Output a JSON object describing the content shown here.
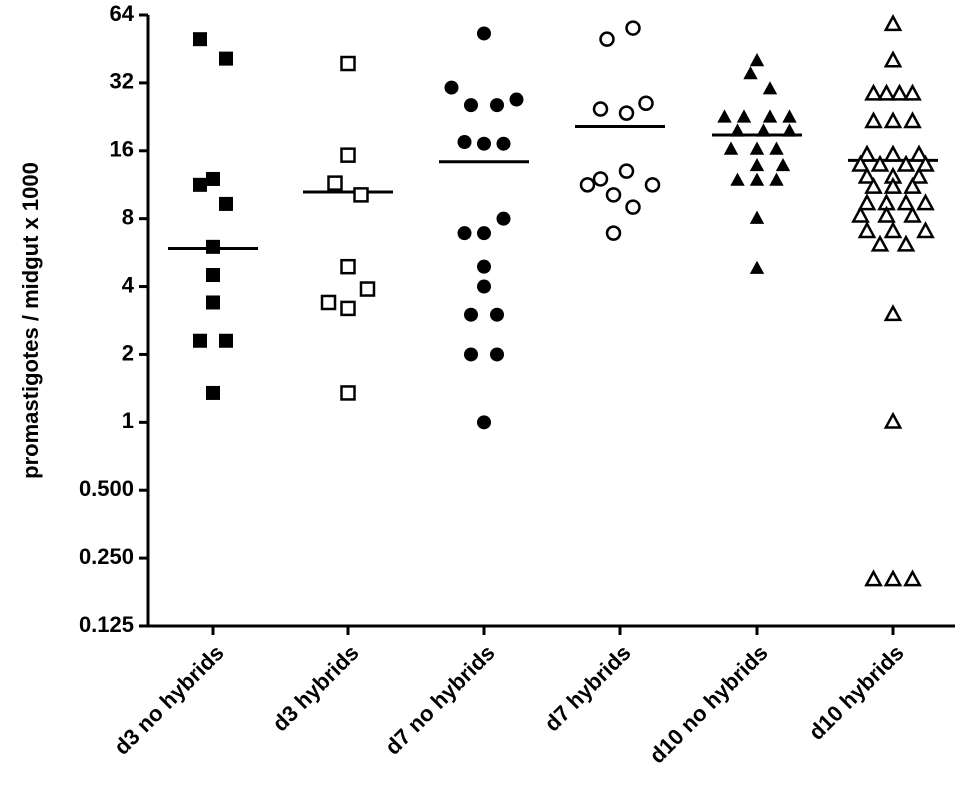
{
  "chart_data": {
    "type": "scatter",
    "ylabel": "promastigotes / midgut x 1000",
    "xlabel": "",
    "title": "",
    "yscale": "log2",
    "ylim": [
      0.125,
      64
    ],
    "yticks": [
      {
        "value": 0.125,
        "label": "0.125"
      },
      {
        "value": 0.25,
        "label": "0.250"
      },
      {
        "value": 0.5,
        "label": "0.500"
      },
      {
        "value": 1,
        "label": "1"
      },
      {
        "value": 2,
        "label": "2"
      },
      {
        "value": 4,
        "label": "4"
      },
      {
        "value": 8,
        "label": "8"
      },
      {
        "value": 16,
        "label": "16"
      },
      {
        "value": 32,
        "label": "32"
      },
      {
        "value": 64,
        "label": "64"
      }
    ],
    "categories": [
      "d3 no hybrids",
      "d3 hybrids",
      "d7 no hybrids",
      "d7 hybrids",
      "d10 no hybrids",
      "d10 hybrids"
    ],
    "series": [
      {
        "category": "d3 no hybrids",
        "marker": "square-filled",
        "mean": 5.9,
        "points": [
          {
            "dx": -1,
            "y": 50
          },
          {
            "dx": 1,
            "y": 41
          },
          {
            "dx": 0,
            "y": 12
          },
          {
            "dx": -1,
            "y": 11.3
          },
          {
            "dx": 1,
            "y": 9.3
          },
          {
            "dx": 0,
            "y": 6
          },
          {
            "dx": 0,
            "y": 4.5
          },
          {
            "dx": 0,
            "y": 3.4
          },
          {
            "dx": -1,
            "y": 2.3
          },
          {
            "dx": 1,
            "y": 2.3
          },
          {
            "dx": 0,
            "y": 1.35
          }
        ]
      },
      {
        "category": "d3 hybrids",
        "marker": "square-open",
        "mean": 10.5,
        "points": [
          {
            "dx": 0,
            "y": 39
          },
          {
            "dx": 0,
            "y": 15.3
          },
          {
            "dx": -1,
            "y": 11.5
          },
          {
            "dx": 1,
            "y": 10.2
          },
          {
            "dx": 0,
            "y": 4.9
          },
          {
            "dx": 1.5,
            "y": 3.9
          },
          {
            "dx": -1.5,
            "y": 3.4
          },
          {
            "dx": 0,
            "y": 3.2
          },
          {
            "dx": 0,
            "y": 1.35
          }
        ]
      },
      {
        "category": "d7 no hybrids",
        "marker": "circle-filled",
        "mean": 14.3,
        "points": [
          {
            "dx": 0,
            "y": 53
          },
          {
            "dx": -2.5,
            "y": 30.5
          },
          {
            "dx": 2.5,
            "y": 27
          },
          {
            "dx": -1,
            "y": 25.5
          },
          {
            "dx": 1,
            "y": 25.5
          },
          {
            "dx": -1.5,
            "y": 17.5
          },
          {
            "dx": 0,
            "y": 17.2
          },
          {
            "dx": 1.5,
            "y": 17.2
          },
          {
            "dx": 1.5,
            "y": 8
          },
          {
            "dx": -1.5,
            "y": 6.9
          },
          {
            "dx": 0,
            "y": 6.9
          },
          {
            "dx": 0,
            "y": 4.9
          },
          {
            "dx": 0,
            "y": 4
          },
          {
            "dx": -1,
            "y": 3
          },
          {
            "dx": 1,
            "y": 3
          },
          {
            "dx": -1,
            "y": 2
          },
          {
            "dx": 1,
            "y": 2
          },
          {
            "dx": 0,
            "y": 1
          }
        ]
      },
      {
        "category": "d7 hybrids",
        "marker": "circle-open",
        "mean": 20.5,
        "points": [
          {
            "dx": 1,
            "y": 56
          },
          {
            "dx": -1,
            "y": 50
          },
          {
            "dx": 2,
            "y": 26
          },
          {
            "dx": -1.5,
            "y": 24.5
          },
          {
            "dx": 0.5,
            "y": 23.5
          },
          {
            "dx": 0.5,
            "y": 13
          },
          {
            "dx": -1.5,
            "y": 12
          },
          {
            "dx": -2.5,
            "y": 11.3
          },
          {
            "dx": 2.5,
            "y": 11.3
          },
          {
            "dx": -0.5,
            "y": 10.2
          },
          {
            "dx": 1,
            "y": 9
          },
          {
            "dx": -0.5,
            "y": 6.9
          }
        ]
      },
      {
        "category": "d10 no hybrids",
        "marker": "triangle-filled",
        "mean": 18.8,
        "points": [
          {
            "dx": 0,
            "y": 40
          },
          {
            "dx": -0.5,
            "y": 35
          },
          {
            "dx": 1,
            "y": 30
          },
          {
            "dx": -2.5,
            "y": 22.5
          },
          {
            "dx": -1,
            "y": 22.5
          },
          {
            "dx": 1,
            "y": 22.5
          },
          {
            "dx": 2.5,
            "y": 22.5
          },
          {
            "dx": -1.5,
            "y": 19.5
          },
          {
            "dx": 0.5,
            "y": 19.5
          },
          {
            "dx": 2.5,
            "y": 19.5
          },
          {
            "dx": -2,
            "y": 16.2
          },
          {
            "dx": 0,
            "y": 16.2
          },
          {
            "dx": 1.5,
            "y": 16.2
          },
          {
            "dx": 2,
            "y": 13.7
          },
          {
            "dx": 0,
            "y": 13.7
          },
          {
            "dx": -1.5,
            "y": 11.8
          },
          {
            "dx": 0,
            "y": 11.8
          },
          {
            "dx": 1.5,
            "y": 11.8
          },
          {
            "dx": 0,
            "y": 8
          },
          {
            "dx": 0,
            "y": 4.8
          }
        ]
      },
      {
        "category": "d10 hybrids",
        "marker": "triangle-open",
        "mean": 14.5,
        "points": [
          {
            "dx": 0,
            "y": 58
          },
          {
            "dx": 0,
            "y": 40
          },
          {
            "dx": -1.5,
            "y": 28.5
          },
          {
            "dx": -0.5,
            "y": 28.5
          },
          {
            "dx": 0.5,
            "y": 28.5
          },
          {
            "dx": 1.5,
            "y": 28.5
          },
          {
            "dx": -1.5,
            "y": 21.5
          },
          {
            "dx": 0,
            "y": 21.5
          },
          {
            "dx": 1.5,
            "y": 21.5
          },
          {
            "dx": -2,
            "y": 15.3
          },
          {
            "dx": 0,
            "y": 15.3
          },
          {
            "dx": 2,
            "y": 15.3
          },
          {
            "dx": -2.5,
            "y": 13.8
          },
          {
            "dx": -1,
            "y": 13.8
          },
          {
            "dx": 1,
            "y": 13.8
          },
          {
            "dx": 2.5,
            "y": 13.8
          },
          {
            "dx": -2,
            "y": 12.2
          },
          {
            "dx": 0,
            "y": 12.2
          },
          {
            "dx": 2,
            "y": 12.2
          },
          {
            "dx": -1.5,
            "y": 11
          },
          {
            "dx": 0,
            "y": 11
          },
          {
            "dx": 1.5,
            "y": 11
          },
          {
            "dx": -2,
            "y": 9.3
          },
          {
            "dx": -0.5,
            "y": 9.3
          },
          {
            "dx": 1,
            "y": 9.3
          },
          {
            "dx": 2.5,
            "y": 9.3
          },
          {
            "dx": -2.5,
            "y": 8.2
          },
          {
            "dx": -0.5,
            "y": 8.2
          },
          {
            "dx": 1.5,
            "y": 8.2
          },
          {
            "dx": -2,
            "y": 7
          },
          {
            "dx": 0,
            "y": 7
          },
          {
            "dx": 2.5,
            "y": 7
          },
          {
            "dx": -1,
            "y": 6.1
          },
          {
            "dx": 1,
            "y": 6.1
          },
          {
            "dx": 0,
            "y": 3
          },
          {
            "dx": 0,
            "y": 1
          },
          {
            "dx": -1.5,
            "y": 0.2
          },
          {
            "dx": 0,
            "y": 0.2
          },
          {
            "dx": 1.5,
            "y": 0.2
          }
        ]
      }
    ],
    "colors": {
      "marker": "#000000",
      "axis": "#000000",
      "background": "#ffffff"
    }
  }
}
